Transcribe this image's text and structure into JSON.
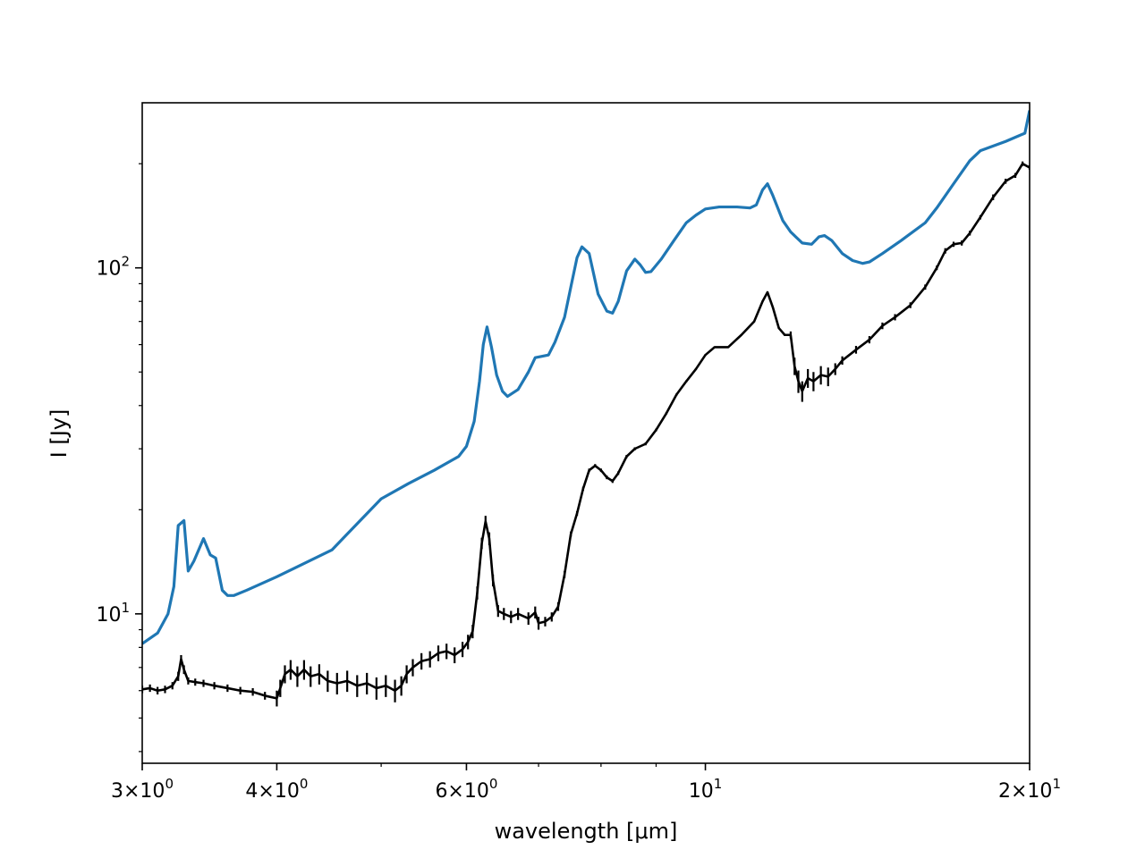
{
  "chart_data": {
    "type": "line",
    "title": "",
    "xlabel": "wavelength [μm]",
    "ylabel": "I [Jy]",
    "xscale": "log",
    "yscale": "log",
    "xlim": [
      3,
      20
    ],
    "ylim": [
      3.7,
      300
    ],
    "grid": false,
    "legend": "none",
    "x_ticks": [
      {
        "value": 3,
        "base": "3×10",
        "exp": "0"
      },
      {
        "value": 4,
        "base": "4×10",
        "exp": "0"
      },
      {
        "value": 6,
        "base": "6×10",
        "exp": "0"
      },
      {
        "value": 10,
        "base": "10",
        "exp": "1"
      },
      {
        "value": 20,
        "base": "2×10",
        "exp": "1"
      }
    ],
    "x_minor_ticks": [
      5,
      7,
      8,
      9
    ],
    "y_ticks": [
      {
        "value": 10,
        "base": "10",
        "exp": "1"
      },
      {
        "value": 100,
        "base": "10",
        "exp": "2"
      }
    ],
    "y_minor_ticks": [
      4,
      5,
      6,
      7,
      8,
      9,
      20,
      30,
      40,
      50,
      60,
      70,
      80,
      90,
      200
    ],
    "series": [
      {
        "color": "#1f77b4",
        "style": "line",
        "points": [
          [
            3.0,
            8.2
          ],
          [
            3.1,
            8.8
          ],
          [
            3.17,
            10.0
          ],
          [
            3.21,
            12.0
          ],
          [
            3.24,
            18.0
          ],
          [
            3.28,
            18.6
          ],
          [
            3.31,
            13.3
          ],
          [
            3.35,
            14.2
          ],
          [
            3.42,
            16.5
          ],
          [
            3.47,
            14.8
          ],
          [
            3.51,
            14.5
          ],
          [
            3.56,
            11.7
          ],
          [
            3.6,
            11.3
          ],
          [
            3.65,
            11.3
          ],
          [
            3.75,
            11.7
          ],
          [
            4.0,
            12.8
          ],
          [
            4.5,
            15.3
          ],
          [
            5.0,
            21.5
          ],
          [
            5.3,
            23.8
          ],
          [
            5.6,
            26.0
          ],
          [
            5.9,
            28.5
          ],
          [
            6.0,
            30.5
          ],
          [
            6.1,
            36.0
          ],
          [
            6.17,
            47.0
          ],
          [
            6.22,
            60.0
          ],
          [
            6.27,
            67.5
          ],
          [
            6.33,
            59.0
          ],
          [
            6.4,
            49.0
          ],
          [
            6.48,
            44.0
          ],
          [
            6.55,
            42.5
          ],
          [
            6.7,
            44.5
          ],
          [
            6.85,
            50.0
          ],
          [
            6.95,
            55.0
          ],
          [
            7.05,
            55.5
          ],
          [
            7.15,
            56.0
          ],
          [
            7.25,
            61.0
          ],
          [
            7.4,
            72.0
          ],
          [
            7.5,
            88.0
          ],
          [
            7.6,
            107.0
          ],
          [
            7.68,
            115.0
          ],
          [
            7.8,
            110.0
          ],
          [
            7.95,
            84.0
          ],
          [
            8.1,
            75.0
          ],
          [
            8.2,
            74.0
          ],
          [
            8.3,
            80.0
          ],
          [
            8.45,
            98.0
          ],
          [
            8.6,
            106.0
          ],
          [
            8.7,
            102.0
          ],
          [
            8.8,
            97.0
          ],
          [
            8.9,
            97.5
          ],
          [
            9.1,
            106.0
          ],
          [
            9.35,
            120.0
          ],
          [
            9.6,
            135.0
          ],
          [
            9.8,
            142.0
          ],
          [
            10.0,
            148.0
          ],
          [
            10.3,
            150.0
          ],
          [
            10.7,
            150.0
          ],
          [
            11.0,
            149.0
          ],
          [
            11.15,
            152.0
          ],
          [
            11.3,
            168.0
          ],
          [
            11.42,
            175.0
          ],
          [
            11.55,
            162.0
          ],
          [
            11.8,
            137.0
          ],
          [
            12.0,
            127.0
          ],
          [
            12.3,
            118.0
          ],
          [
            12.55,
            117.0
          ],
          [
            12.75,
            123.0
          ],
          [
            12.9,
            124.0
          ],
          [
            13.1,
            120.0
          ],
          [
            13.4,
            110.0
          ],
          [
            13.7,
            105.0
          ],
          [
            14.0,
            103.0
          ],
          [
            14.2,
            104.0
          ],
          [
            14.6,
            110.0
          ],
          [
            15.2,
            120.0
          ],
          [
            16.0,
            135.0
          ],
          [
            16.4,
            149.0
          ],
          [
            17.0,
            175.0
          ],
          [
            17.6,
            204.0
          ],
          [
            18.0,
            218.0
          ],
          [
            19.0,
            232.0
          ],
          [
            19.8,
            245.0
          ],
          [
            20.0,
            285.0
          ]
        ]
      },
      {
        "color": "#000000",
        "style": "errorbar",
        "points": [
          [
            3.0,
            6.05,
            0.15
          ],
          [
            3.05,
            6.1,
            0.15
          ],
          [
            3.1,
            6.0,
            0.15
          ],
          [
            3.15,
            6.05,
            0.15
          ],
          [
            3.2,
            6.2,
            0.15
          ],
          [
            3.24,
            6.6,
            0.2
          ],
          [
            3.26,
            7.4,
            0.2
          ],
          [
            3.28,
            6.9,
            0.2
          ],
          [
            3.31,
            6.4,
            0.15
          ],
          [
            3.36,
            6.35,
            0.15
          ],
          [
            3.42,
            6.3,
            0.15
          ],
          [
            3.5,
            6.2,
            0.15
          ],
          [
            3.6,
            6.1,
            0.15
          ],
          [
            3.7,
            6.0,
            0.15
          ],
          [
            3.8,
            5.95,
            0.15
          ],
          [
            3.9,
            5.8,
            0.15
          ],
          [
            4.0,
            5.7,
            0.3
          ],
          [
            4.03,
            6.1,
            0.35
          ],
          [
            4.07,
            6.7,
            0.4
          ],
          [
            4.12,
            6.9,
            0.45
          ],
          [
            4.18,
            6.6,
            0.45
          ],
          [
            4.24,
            6.9,
            0.45
          ],
          [
            4.3,
            6.6,
            0.45
          ],
          [
            4.38,
            6.7,
            0.45
          ],
          [
            4.46,
            6.4,
            0.45
          ],
          [
            4.55,
            6.3,
            0.45
          ],
          [
            4.65,
            6.4,
            0.45
          ],
          [
            4.75,
            6.2,
            0.45
          ],
          [
            4.85,
            6.3,
            0.45
          ],
          [
            4.95,
            6.1,
            0.45
          ],
          [
            5.05,
            6.2,
            0.45
          ],
          [
            5.15,
            6.0,
            0.45
          ],
          [
            5.22,
            6.2,
            0.4
          ],
          [
            5.28,
            6.7,
            0.4
          ],
          [
            5.35,
            7.0,
            0.4
          ],
          [
            5.45,
            7.3,
            0.4
          ],
          [
            5.55,
            7.4,
            0.4
          ],
          [
            5.65,
            7.7,
            0.4
          ],
          [
            5.75,
            7.8,
            0.4
          ],
          [
            5.85,
            7.6,
            0.4
          ],
          [
            5.95,
            7.9,
            0.4
          ],
          [
            6.02,
            8.3,
            0.4
          ],
          [
            6.08,
            8.9,
            0.4
          ],
          [
            6.14,
            11.5,
            0.5
          ],
          [
            6.2,
            16.0,
            0.6
          ],
          [
            6.25,
            18.5,
            0.7
          ],
          [
            6.3,
            16.5,
            0.7
          ],
          [
            6.35,
            12.5,
            0.5
          ],
          [
            6.42,
            10.2,
            0.4
          ],
          [
            6.5,
            10.0,
            0.4
          ],
          [
            6.6,
            9.8,
            0.4
          ],
          [
            6.7,
            10.0,
            0.4
          ],
          [
            6.85,
            9.7,
            0.4
          ],
          [
            6.95,
            10.1,
            0.4
          ],
          [
            7.0,
            9.4,
            0.4
          ],
          [
            7.1,
            9.5,
            0.3
          ],
          [
            7.2,
            9.8,
            0.3
          ],
          [
            7.3,
            10.5,
            0.3
          ],
          [
            7.4,
            13.0,
            0.3
          ],
          [
            7.5,
            17.0,
            0.3
          ],
          [
            7.6,
            19.5,
            0.3
          ],
          [
            7.7,
            23.0,
            0.3
          ],
          [
            7.8,
            26.0,
            0.3
          ],
          [
            7.9,
            26.8,
            0.3
          ],
          [
            8.0,
            26.0,
            0.3
          ],
          [
            8.1,
            24.8,
            0.3
          ],
          [
            8.2,
            24.2,
            0.3
          ],
          [
            8.3,
            25.5,
            0.3
          ],
          [
            8.45,
            28.5,
            0.3
          ],
          [
            8.6,
            30.0,
            0.3
          ],
          [
            8.8,
            31.0,
            0.3
          ],
          [
            9.0,
            34.0,
            0.3
          ],
          [
            9.2,
            38.0,
            0.3
          ],
          [
            9.4,
            43.0,
            0.3
          ],
          [
            9.6,
            47.0,
            0.3
          ],
          [
            9.8,
            51.0,
            0.3
          ],
          [
            10.0,
            56.0,
            0.3
          ],
          [
            10.2,
            59.0,
            0.3
          ],
          [
            10.5,
            59.0,
            0.3
          ],
          [
            10.8,
            64.0,
            0.3
          ],
          [
            11.1,
            70.0,
            0.3
          ],
          [
            11.3,
            80.0,
            0.4
          ],
          [
            11.42,
            85.0,
            0.4
          ],
          [
            11.55,
            77.0,
            0.4
          ],
          [
            11.7,
            67.0,
            0.4
          ],
          [
            11.85,
            64.0,
            0.4
          ],
          [
            12.0,
            64.0,
            1.5
          ],
          [
            12.1,
            52.0,
            3.0
          ],
          [
            12.2,
            47.0,
            3.5
          ],
          [
            12.3,
            44.0,
            3.0
          ],
          [
            12.45,
            48.0,
            3.0
          ],
          [
            12.6,
            47.0,
            3.0
          ],
          [
            12.8,
            49.0,
            3.0
          ],
          [
            13.0,
            48.5,
            3.0
          ],
          [
            13.2,
            51.0,
            2.0
          ],
          [
            13.4,
            54.0,
            1.5
          ],
          [
            13.8,
            58.0,
            1.5
          ],
          [
            14.2,
            62.0,
            1.5
          ],
          [
            14.6,
            68.0,
            1.5
          ],
          [
            15.0,
            72.0,
            1.5
          ],
          [
            15.5,
            78.0,
            1.5
          ],
          [
            16.0,
            88.0,
            1.5
          ],
          [
            16.4,
            100.0,
            1.5
          ],
          [
            16.7,
            112.0,
            2.0
          ],
          [
            17.0,
            117.0,
            2.0
          ],
          [
            17.3,
            118.0,
            2.0
          ],
          [
            17.6,
            126.0,
            2.0
          ],
          [
            18.0,
            140.0,
            2.0
          ],
          [
            18.5,
            160.0,
            3.0
          ],
          [
            19.0,
            178.0,
            3.0
          ],
          [
            19.4,
            185.0,
            3.0
          ],
          [
            19.7,
            200.0,
            3.0
          ],
          [
            20.0,
            195.0,
            3.0
          ]
        ]
      }
    ]
  }
}
